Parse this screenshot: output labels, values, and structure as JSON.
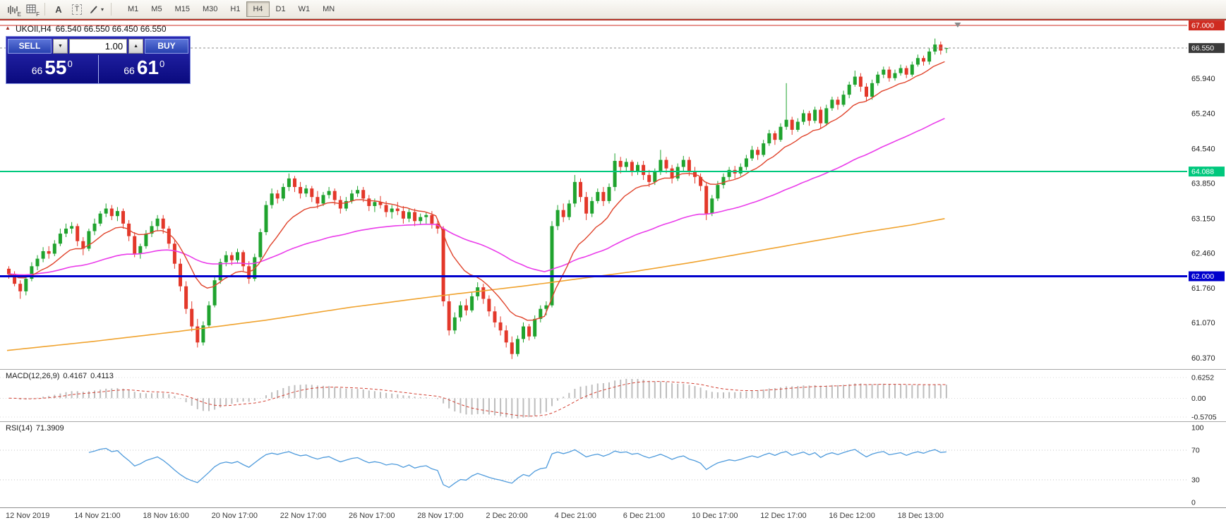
{
  "toolbar": {
    "sub_e": "E",
    "sub_f": "F",
    "letter_a": "A",
    "letter_t": "T",
    "timeframes": [
      "M1",
      "M5",
      "M15",
      "M30",
      "H1",
      "H4",
      "D1",
      "W1",
      "MN"
    ],
    "active_timeframe": "H4"
  },
  "chart": {
    "title_symbol": "UKOIl,H4",
    "title_ohlc": "66.540 66.550 66.450 66.550"
  },
  "trade_panel": {
    "sell_label": "SELL",
    "buy_label": "BUY",
    "volume": "1.00",
    "down_glyph": "▼",
    "up_glyph": "▲",
    "sell_price_small": "66",
    "sell_price_big": "55",
    "sell_price_sup": "0",
    "buy_price_small": "66",
    "buy_price_big": "61",
    "buy_price_sup": "0"
  },
  "price_axis": {
    "ticks": [
      "65.940",
      "65.240",
      "64.540",
      "63.850",
      "63.150",
      "62.460",
      "61.760",
      "61.070",
      "60.370"
    ],
    "badges": [
      {
        "value": "67.000",
        "bg": "#cf2b20",
        "fg": "#ffffff"
      },
      {
        "value": "66.550",
        "bg": "#3a3a3a",
        "fg": "#ffffff"
      },
      {
        "value": "64.088",
        "bg": "#00c87d",
        "fg": "#ffffff"
      },
      {
        "value": "62.000",
        "bg": "#0000cc",
        "fg": "#ffffff"
      }
    ]
  },
  "time_axis": [
    "12 Nov 2019",
    "14 Nov 21:00",
    "18 Nov 16:00",
    "20 Nov 17:00",
    "22 Nov 17:00",
    "26 Nov 17:00",
    "28 Nov 17:00",
    "2 Dec 20:00",
    "4 Dec 21:00",
    "6 Dec 21:00",
    "10 Dec 17:00",
    "12 Dec 17:00",
    "16 Dec 12:00",
    "18 Dec 13:00"
  ],
  "indicators": {
    "macd": {
      "label": "MACD(12,26,9)",
      "values": [
        "0.4167",
        "0.4113"
      ],
      "axis": [
        "0.6252",
        "0.00",
        "-0.5705"
      ],
      "fast": 12,
      "slow": 26,
      "signal": 9,
      "histogram_color": "#bdbdbd",
      "signal_color": "#d23f31"
    },
    "rsi": {
      "label": "RSI(14)",
      "value": "71.3909",
      "axis": [
        "100",
        "70",
        "30",
        "0"
      ],
      "period": 14,
      "levels": [
        70,
        30
      ],
      "line_color": "#4f9bdc"
    }
  },
  "colors": {
    "bull": "#1fa32e",
    "bear": "#e3382a",
    "bid_line": "#8c8c8c",
    "grid_dotted": "#d8d8d8"
  },
  "chart_data": {
    "type": "candlestick",
    "symbol": "UKOIl",
    "timeframe": "H4",
    "y_range": [
      60.15,
      67.1
    ],
    "label_every_n_bars": 12,
    "bid_line": 66.55,
    "levels": [
      {
        "price": 67.0,
        "color": "#cf2b20",
        "width": 1
      },
      {
        "price": 64.088,
        "color": "#00c87d",
        "width": 2
      },
      {
        "price": 62.0,
        "color": "#0000cc",
        "width": 3
      }
    ],
    "overlays": {
      "fast_ma": {
        "type": "ema",
        "period": 12,
        "color": "#e0442c"
      },
      "mid_ma": {
        "type": "ema",
        "period": 55,
        "color": "#ea3dea"
      },
      "slow_ma": {
        "type": "points",
        "color": "#f0a32f",
        "points": [
          [
            0,
            60.52
          ],
          [
            15,
            60.7
          ],
          [
            30,
            60.9
          ],
          [
            45,
            61.12
          ],
          [
            60,
            61.38
          ],
          [
            75,
            61.6
          ],
          [
            90,
            61.8
          ],
          [
            100,
            61.95
          ],
          [
            110,
            62.1
          ],
          [
            120,
            62.28
          ],
          [
            130,
            62.48
          ],
          [
            140,
            62.68
          ],
          [
            150,
            62.88
          ],
          [
            158,
            63.02
          ],
          [
            164,
            63.15
          ]
        ]
      }
    },
    "ohlc": [
      [
        62.15,
        62.2,
        61.95,
        62.05
      ],
      [
        62.05,
        62.1,
        61.8,
        61.85
      ],
      [
        61.85,
        61.92,
        61.55,
        61.7
      ],
      [
        61.7,
        62.0,
        61.62,
        61.95
      ],
      [
        61.95,
        62.28,
        61.9,
        62.2
      ],
      [
        62.2,
        62.42,
        62.12,
        62.35
      ],
      [
        62.35,
        62.58,
        62.28,
        62.5
      ],
      [
        62.5,
        62.6,
        62.35,
        62.45
      ],
      [
        62.45,
        62.72,
        62.4,
        62.65
      ],
      [
        62.65,
        62.95,
        62.6,
        62.85
      ],
      [
        62.85,
        63.05,
        62.78,
        62.95
      ],
      [
        62.95,
        63.08,
        62.85,
        63.0
      ],
      [
        63.0,
        63.05,
        62.6,
        62.7
      ],
      [
        62.7,
        62.78,
        62.42,
        62.55
      ],
      [
        62.55,
        62.95,
        62.5,
        62.9
      ],
      [
        62.9,
        63.15,
        62.82,
        63.05
      ],
      [
        63.05,
        63.3,
        63.0,
        63.25
      ],
      [
        63.25,
        63.45,
        63.18,
        63.35
      ],
      [
        63.35,
        63.42,
        63.12,
        63.2
      ],
      [
        63.2,
        63.38,
        63.1,
        63.3
      ],
      [
        63.3,
        63.35,
        62.95,
        63.05
      ],
      [
        63.05,
        63.12,
        62.7,
        62.8
      ],
      [
        62.8,
        62.88,
        62.38,
        62.45
      ],
      [
        62.45,
        62.65,
        62.35,
        62.6
      ],
      [
        62.6,
        62.92,
        62.55,
        62.85
      ],
      [
        62.85,
        63.1,
        62.78,
        63.0
      ],
      [
        63.0,
        63.22,
        62.9,
        63.15
      ],
      [
        63.15,
        63.22,
        62.85,
        62.95
      ],
      [
        62.95,
        63.0,
        62.55,
        62.65
      ],
      [
        62.65,
        62.72,
        62.15,
        62.25
      ],
      [
        62.25,
        62.35,
        61.7,
        61.8
      ],
      [
        61.8,
        61.9,
        61.25,
        61.35
      ],
      [
        61.35,
        61.5,
        60.9,
        61.0
      ],
      [
        61.0,
        61.15,
        60.58,
        60.68
      ],
      [
        60.68,
        61.1,
        60.62,
        61.02
      ],
      [
        61.02,
        61.5,
        60.98,
        61.42
      ],
      [
        61.42,
        62.0,
        61.38,
        61.92
      ],
      [
        61.92,
        62.35,
        61.85,
        62.28
      ],
      [
        62.28,
        62.5,
        62.2,
        62.42
      ],
      [
        62.42,
        62.48,
        62.22,
        62.32
      ],
      [
        62.32,
        62.55,
        62.25,
        62.48
      ],
      [
        62.48,
        62.52,
        62.1,
        62.2
      ],
      [
        62.2,
        62.3,
        61.85,
        61.95
      ],
      [
        61.95,
        62.45,
        61.9,
        62.38
      ],
      [
        62.38,
        62.95,
        62.32,
        62.88
      ],
      [
        62.88,
        63.5,
        62.82,
        63.42
      ],
      [
        63.42,
        63.75,
        63.35,
        63.65
      ],
      [
        63.65,
        63.72,
        63.45,
        63.55
      ],
      [
        63.55,
        63.85,
        63.5,
        63.78
      ],
      [
        63.78,
        64.05,
        63.7,
        63.95
      ],
      [
        63.95,
        64.0,
        63.68,
        63.78
      ],
      [
        63.78,
        63.88,
        63.55,
        63.65
      ],
      [
        63.65,
        63.82,
        63.58,
        63.75
      ],
      [
        63.75,
        63.8,
        63.48,
        63.58
      ],
      [
        63.58,
        63.7,
        63.35,
        63.45
      ],
      [
        63.45,
        63.68,
        63.4,
        63.62
      ],
      [
        63.62,
        63.78,
        63.55,
        63.7
      ],
      [
        63.7,
        63.75,
        63.42,
        63.52
      ],
      [
        63.52,
        63.6,
        63.25,
        63.35
      ],
      [
        63.35,
        63.58,
        63.3,
        63.5
      ],
      [
        63.5,
        63.72,
        63.45,
        63.65
      ],
      [
        63.65,
        63.8,
        63.58,
        63.72
      ],
      [
        63.72,
        63.78,
        63.48,
        63.55
      ],
      [
        63.55,
        63.62,
        63.3,
        63.4
      ],
      [
        63.4,
        63.55,
        63.28,
        63.48
      ],
      [
        63.48,
        63.6,
        63.35,
        63.42
      ],
      [
        63.42,
        63.5,
        63.18,
        63.28
      ],
      [
        63.28,
        63.42,
        63.15,
        63.35
      ],
      [
        63.35,
        63.48,
        63.22,
        63.3
      ],
      [
        63.3,
        63.4,
        63.05,
        63.15
      ],
      [
        63.15,
        63.35,
        63.08,
        63.28
      ],
      [
        63.28,
        63.35,
        63.0,
        63.1
      ],
      [
        63.1,
        63.25,
        63.02,
        63.18
      ],
      [
        63.18,
        63.28,
        63.05,
        63.22
      ],
      [
        63.22,
        63.3,
        62.95,
        63.05
      ],
      [
        63.05,
        63.12,
        62.85,
        62.95
      ],
      [
        62.95,
        63.0,
        61.4,
        61.5
      ],
      [
        61.5,
        61.62,
        60.82,
        60.92
      ],
      [
        60.92,
        61.28,
        60.85,
        61.18
      ],
      [
        61.18,
        61.5,
        61.1,
        61.42
      ],
      [
        61.42,
        61.55,
        61.22,
        61.32
      ],
      [
        61.32,
        61.68,
        61.28,
        61.6
      ],
      [
        61.6,
        61.88,
        61.52,
        61.78
      ],
      [
        61.78,
        61.85,
        61.45,
        61.55
      ],
      [
        61.55,
        61.62,
        61.2,
        61.3
      ],
      [
        61.3,
        61.4,
        60.98,
        61.08
      ],
      [
        61.08,
        61.2,
        60.82,
        60.92
      ],
      [
        60.92,
        61.02,
        60.58,
        60.68
      ],
      [
        60.68,
        60.8,
        60.35,
        60.45
      ],
      [
        60.45,
        60.82,
        60.4,
        60.75
      ],
      [
        60.75,
        61.08,
        60.68,
        61.0
      ],
      [
        61.0,
        61.05,
        60.72,
        60.8
      ],
      [
        60.8,
        61.22,
        60.75,
        61.15
      ],
      [
        61.15,
        61.42,
        61.08,
        61.35
      ],
      [
        61.35,
        61.5,
        61.22,
        61.42
      ],
      [
        61.42,
        63.1,
        61.38,
        63.0
      ],
      [
        63.0,
        63.42,
        62.92,
        63.32
      ],
      [
        63.32,
        63.45,
        63.08,
        63.18
      ],
      [
        63.18,
        63.52,
        63.12,
        63.45
      ],
      [
        63.45,
        64.02,
        63.38,
        63.88
      ],
      [
        63.88,
        63.95,
        63.48,
        63.58
      ],
      [
        63.58,
        63.68,
        63.12,
        63.25
      ],
      [
        63.25,
        63.58,
        63.18,
        63.5
      ],
      [
        63.5,
        63.75,
        63.45,
        63.68
      ],
      [
        63.68,
        63.78,
        63.4,
        63.5
      ],
      [
        63.5,
        63.85,
        63.45,
        63.78
      ],
      [
        63.78,
        64.45,
        63.7,
        64.3
      ],
      [
        64.3,
        64.38,
        64.05,
        64.18
      ],
      [
        64.18,
        64.35,
        64.08,
        64.28
      ],
      [
        64.28,
        64.32,
        64.0,
        64.1
      ],
      [
        64.1,
        64.28,
        64.02,
        64.22
      ],
      [
        64.22,
        64.3,
        63.92,
        64.02
      ],
      [
        64.02,
        64.12,
        63.78,
        63.88
      ],
      [
        63.88,
        64.15,
        63.82,
        64.08
      ],
      [
        64.08,
        64.52,
        64.02,
        64.32
      ],
      [
        64.32,
        64.38,
        64.05,
        64.15
      ],
      [
        64.15,
        64.22,
        63.85,
        63.95
      ],
      [
        63.95,
        64.25,
        63.9,
        64.18
      ],
      [
        64.18,
        64.4,
        64.1,
        64.32
      ],
      [
        64.32,
        64.38,
        64.0,
        64.1
      ],
      [
        64.1,
        64.18,
        63.85,
        63.98
      ],
      [
        63.98,
        64.05,
        63.7,
        63.8
      ],
      [
        63.8,
        63.88,
        63.12,
        63.25
      ],
      [
        63.25,
        63.62,
        63.2,
        63.55
      ],
      [
        63.55,
        63.9,
        63.5,
        63.82
      ],
      [
        63.82,
        64.05,
        63.75,
        63.98
      ],
      [
        63.98,
        64.18,
        63.92,
        64.12
      ],
      [
        64.12,
        64.2,
        63.95,
        64.05
      ],
      [
        64.05,
        64.25,
        64.0,
        64.18
      ],
      [
        64.18,
        64.42,
        64.12,
        64.35
      ],
      [
        64.35,
        64.6,
        64.3,
        64.52
      ],
      [
        64.52,
        64.58,
        64.32,
        64.42
      ],
      [
        64.42,
        64.72,
        64.38,
        64.65
      ],
      [
        64.65,
        64.92,
        64.6,
        64.85
      ],
      [
        64.85,
        64.9,
        64.62,
        64.72
      ],
      [
        64.72,
        65.05,
        64.68,
        64.98
      ],
      [
        64.98,
        65.85,
        64.92,
        65.12
      ],
      [
        65.12,
        65.18,
        64.82,
        64.92
      ],
      [
        64.92,
        65.15,
        64.88,
        65.08
      ],
      [
        65.08,
        65.32,
        65.02,
        65.25
      ],
      [
        65.25,
        65.3,
        65.0,
        65.1
      ],
      [
        65.1,
        65.38,
        65.05,
        65.32
      ],
      [
        65.32,
        65.38,
        64.95,
        65.05
      ],
      [
        65.05,
        65.42,
        65.0,
        65.35
      ],
      [
        65.35,
        65.58,
        65.3,
        65.52
      ],
      [
        65.52,
        65.58,
        65.32,
        65.42
      ],
      [
        65.42,
        65.7,
        65.38,
        65.62
      ],
      [
        65.62,
        65.88,
        65.55,
        65.82
      ],
      [
        65.82,
        66.1,
        65.78,
        65.98
      ],
      [
        65.98,
        66.05,
        65.68,
        65.78
      ],
      [
        65.78,
        65.85,
        65.48,
        65.58
      ],
      [
        65.58,
        65.92,
        65.52,
        65.85
      ],
      [
        65.85,
        66.08,
        65.8,
        66.02
      ],
      [
        66.02,
        66.18,
        65.95,
        66.12
      ],
      [
        66.12,
        66.18,
        65.88,
        65.95
      ],
      [
        65.95,
        66.12,
        65.9,
        66.05
      ],
      [
        66.05,
        66.22,
        66.0,
        66.15
      ],
      [
        66.15,
        66.2,
        65.95,
        66.02
      ],
      [
        66.02,
        66.28,
        65.98,
        66.22
      ],
      [
        66.22,
        66.42,
        66.18,
        66.35
      ],
      [
        66.35,
        66.4,
        66.2,
        66.28
      ],
      [
        66.28,
        66.55,
        66.22,
        66.48
      ],
      [
        66.48,
        66.74,
        66.42,
        66.62
      ],
      [
        66.62,
        66.68,
        66.42,
        66.5
      ],
      [
        66.54,
        66.55,
        66.45,
        66.55
      ]
    ]
  }
}
